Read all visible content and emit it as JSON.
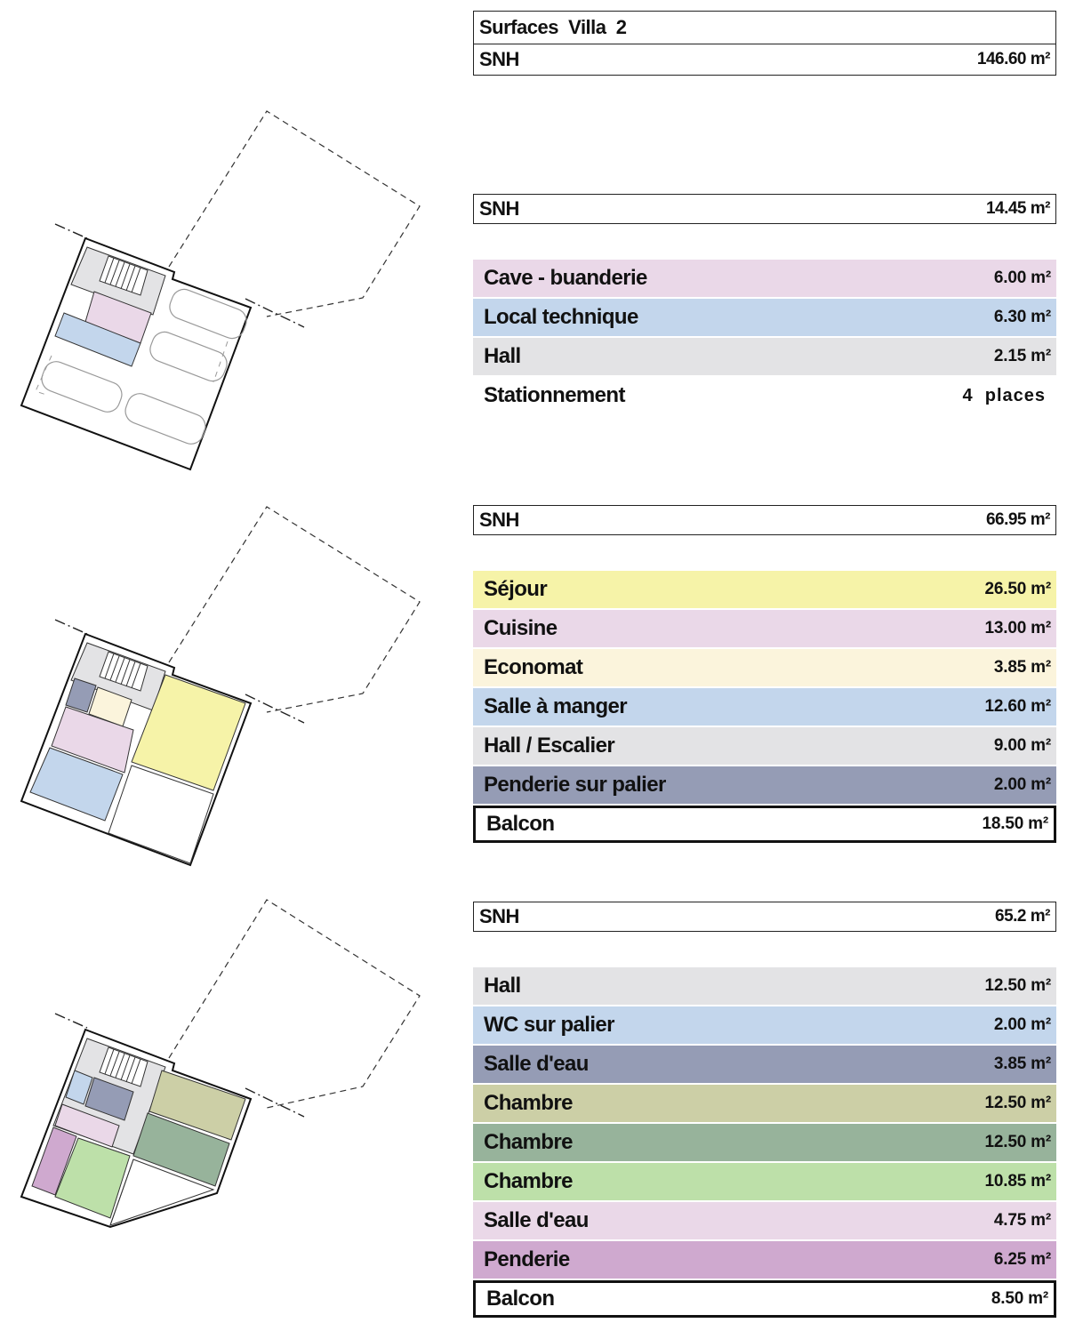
{
  "summary": {
    "title": "Surfaces  Villa  2",
    "snh_label": "SNH",
    "snh_value": "146.60 m²"
  },
  "levels": [
    {
      "snh_label": "SNH",
      "snh_value": "14.45 m²",
      "rooms": [
        {
          "label": "Cave - buanderie",
          "value": "6.00 m²",
          "color": "#ead8e8"
        },
        {
          "label": "Local technique",
          "value": "6.30 m²",
          "color": "#c3d6ec"
        },
        {
          "label": "Hall",
          "value": "2.15 m²",
          "color": "#e3e3e5"
        },
        {
          "label": "Stationnement",
          "value": "4  places",
          "color": "#ffffff"
        }
      ]
    },
    {
      "snh_label": "SNH",
      "snh_value": "66.95 m²",
      "rooms": [
        {
          "label": "Séjour",
          "value": "26.50 m²",
          "color": "#f6f3a8"
        },
        {
          "label": "Cuisine",
          "value": "13.00 m²",
          "color": "#ead8e8"
        },
        {
          "label": "Economat",
          "value": "3.85 m²",
          "color": "#fbf4dc"
        },
        {
          "label": "Salle à manger",
          "value": "12.60 m²",
          "color": "#c3d6ec"
        },
        {
          "label": "Hall / Escalier",
          "value": "9.00 m²",
          "color": "#e3e3e5"
        },
        {
          "label": "Penderie sur palier",
          "value": "2.00 m²",
          "color": "#959cb5"
        },
        {
          "label": "Balcon",
          "value": "18.50 m²",
          "color": "#ffffff"
        }
      ]
    },
    {
      "snh_label": "SNH",
      "snh_value": "65.2 m²",
      "rooms": [
        {
          "label": "Hall",
          "value": "12.50 m²",
          "color": "#e3e3e5"
        },
        {
          "label": "WC sur palier",
          "value": "2.00 m²",
          "color": "#c3d6ec"
        },
        {
          "label": "Salle d'eau",
          "value": "3.85 m²",
          "color": "#959cb5"
        },
        {
          "label": "Chambre",
          "value": "12.50 m²",
          "color": "#cccfa6"
        },
        {
          "label": "Chambre",
          "value": "12.50 m²",
          "color": "#97b39b"
        },
        {
          "label": "Chambre",
          "value": "10.85 m²",
          "color": "#bde0a9"
        },
        {
          "label": "Salle d'eau",
          "value": "4.75 m²",
          "color": "#ead8e8"
        },
        {
          "label": "Penderie",
          "value": "6.25 m²",
          "color": "#cfa9cf"
        },
        {
          "label": "Balcon",
          "value": "8.50 m²",
          "color": "#ffffff"
        }
      ]
    }
  ]
}
